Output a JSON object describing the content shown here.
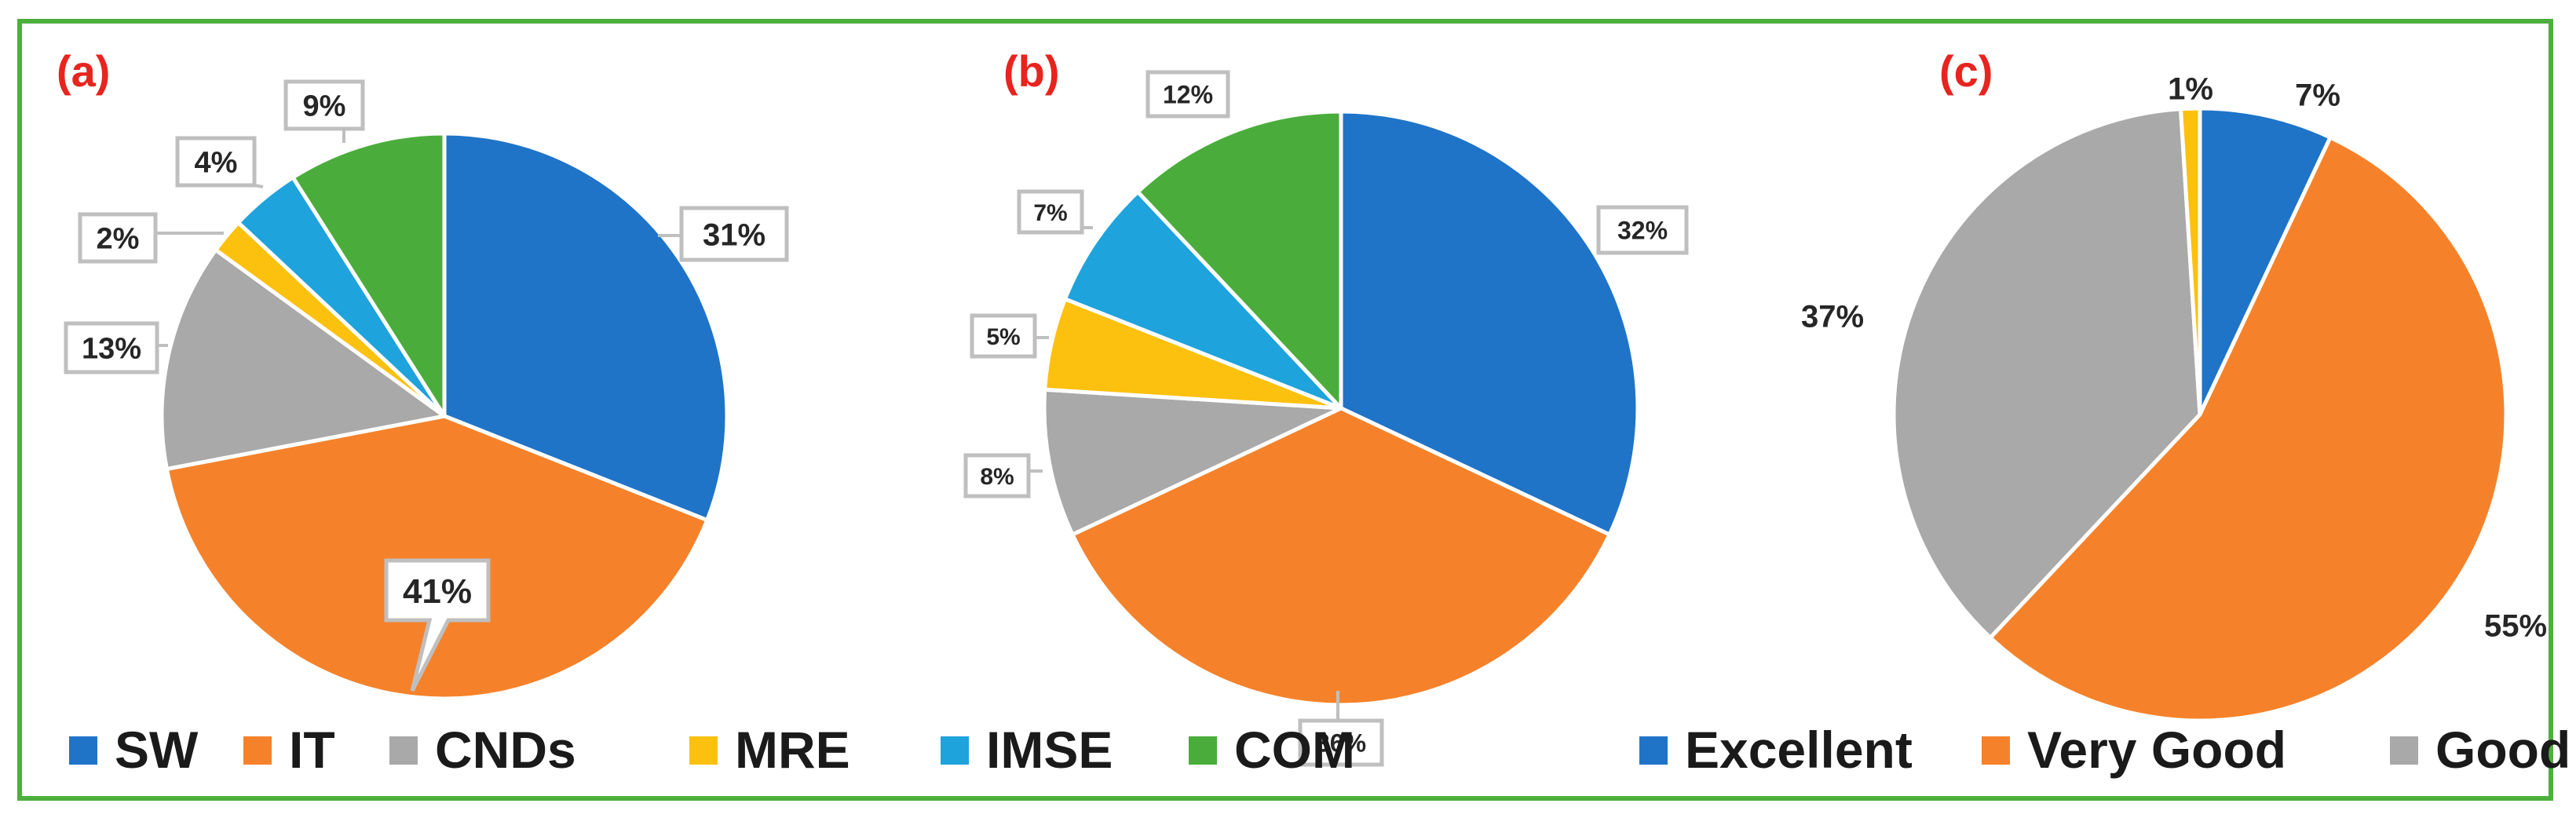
{
  "colors": {
    "blue": "#1f74c8",
    "orange": "#f5822a",
    "gray": "#a9a9a9",
    "yellow": "#fcc10f",
    "light_blue": "#1fa3dc",
    "green": "#4aad3b",
    "frame": "#4daf3d",
    "panel_label": "#e8241e"
  },
  "chart_data": [
    {
      "type": "pie",
      "panel": "(a)",
      "slices": [
        {
          "label": "SW",
          "value": 31,
          "text": "31%",
          "color": "#1f74c8"
        },
        {
          "label": "IT",
          "value": 41,
          "text": "41%",
          "color": "#f5822a"
        },
        {
          "label": "CNDs",
          "value": 13,
          "text": "13%",
          "color": "#a9a9a9"
        },
        {
          "label": "MRE",
          "value": 2,
          "text": "2%",
          "color": "#fcc10f"
        },
        {
          "label": "IMSE",
          "value": 4,
          "text": "4%",
          "color": "#1fa3dc"
        },
        {
          "label": "COM",
          "value": 9,
          "text": "9%",
          "color": "#4aad3b"
        }
      ]
    },
    {
      "type": "pie",
      "panel": "(b)",
      "slices": [
        {
          "label": "SW",
          "value": 32,
          "text": "32%",
          "color": "#1f74c8"
        },
        {
          "label": "IT",
          "value": 36,
          "text": "36%",
          "color": "#f5822a"
        },
        {
          "label": "CNDs",
          "value": 8,
          "text": "8%",
          "color": "#a9a9a9"
        },
        {
          "label": "MRE",
          "value": 5,
          "text": "5%",
          "color": "#fcc10f"
        },
        {
          "label": "IMSE",
          "value": 7,
          "text": "7%",
          "color": "#1fa3dc"
        },
        {
          "label": "COM",
          "value": 12,
          "text": "12%",
          "color": "#4aad3b"
        }
      ]
    },
    {
      "type": "pie",
      "panel": "(c)",
      "slices": [
        {
          "label": "Excellent",
          "value": 7,
          "text": "7%",
          "color": "#1f74c8"
        },
        {
          "label": "Very Good",
          "value": 55,
          "text": "55%",
          "color": "#f5822a"
        },
        {
          "label": "Good",
          "value": 37,
          "text": "37%",
          "color": "#a9a9a9"
        },
        {
          "label": "",
          "value": 1,
          "text": "1%",
          "color": "#fcc10f"
        }
      ]
    }
  ],
  "legends": {
    "left": [
      {
        "label": "SW",
        "color": "#1f74c8"
      },
      {
        "label": "IT",
        "color": "#f5822a"
      },
      {
        "label": "CNDs",
        "color": "#a9a9a9"
      },
      {
        "label": "MRE",
        "color": "#fcc10f"
      },
      {
        "label": "IMSE",
        "color": "#1fa3dc"
      },
      {
        "label": "COM",
        "color": "#4aad3b"
      }
    ],
    "right": [
      {
        "label": "Excellent",
        "color": "#1f74c8"
      },
      {
        "label": "Very Good",
        "color": "#f5822a"
      },
      {
        "label": "Good",
        "color": "#a9a9a9"
      }
    ]
  }
}
